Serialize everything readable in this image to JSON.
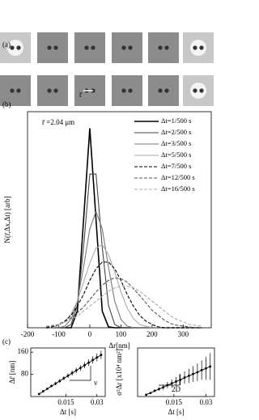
{
  "panel_a": {
    "label": "(a)",
    "scale_label": "r̄"
  },
  "chart_data": [
    {
      "type": "line",
      "panel_label": "(b)",
      "annotation": "r̄ =2.04 μm",
      "x_label": "Δr[nm]",
      "y_label": "N(r̄,Δx,Δt) [arb]",
      "x": [
        -140,
        -120,
        -100,
        -80,
        -60,
        -40,
        -20,
        0,
        20,
        40,
        60,
        80,
        100,
        120,
        140,
        160,
        180,
        200,
        220,
        240,
        260,
        280,
        300,
        320,
        340,
        360
      ],
      "xlim": [
        -200,
        390
      ],
      "xticks": [
        -200,
        -100,
        0,
        100,
        200,
        300
      ],
      "ylim": [
        0,
        26
      ],
      "series": [
        {
          "name": "Δt=1/500 s",
          "color": "#000000",
          "dash": false,
          "values": [
            0,
            0,
            0,
            0,
            0,
            2.0,
            13.0,
            24,
            13.0,
            2.0,
            0.1,
            0,
            0,
            0,
            0,
            0,
            0,
            0,
            0,
            0,
            0,
            0,
            0,
            0,
            0,
            0
          ]
        },
        {
          "name": "Δt=2/500 s",
          "color": "#444444",
          "dash": false,
          "values": [
            0,
            0,
            0,
            0,
            0.4,
            2.7,
            9.7,
            18.5,
            18.5,
            9.7,
            2.7,
            0.4,
            0,
            0,
            0,
            0,
            0,
            0,
            0,
            0,
            0,
            0,
            0,
            0,
            0,
            0
          ]
        },
        {
          "name": "Δt=3/500 s",
          "color": "#777777",
          "dash": false,
          "values": [
            0,
            0,
            0,
            0.2,
            1.0,
            3.2,
            7.3,
            11.9,
            14,
            11.9,
            7.3,
            3.2,
            1.0,
            0.2,
            0,
            0,
            0,
            0,
            0,
            0,
            0,
            0,
            0,
            0,
            0,
            0
          ]
        },
        {
          "name": "Δt=5/500 s",
          "color": "#aaaaaa",
          "dash": false,
          "values": [
            0,
            0,
            0.3,
            0.7,
            1.7,
            3.2,
            5.5,
            7.8,
            9.6,
            10.0,
            8.8,
            6.7,
            4.3,
            2.4,
            1.1,
            0.4,
            0.2,
            0,
            0,
            0,
            0,
            0,
            0,
            0,
            0,
            0
          ]
        },
        {
          "name": "Δt=7/500 s",
          "color": "#000000",
          "dash": true,
          "values": [
            0,
            0.1,
            0.4,
            0.8,
            1.5,
            2.6,
            4.0,
            5.7,
            7.1,
            7.9,
            7.9,
            7.1,
            5.7,
            4.0,
            2.6,
            1.5,
            0.8,
            0.4,
            0.1,
            0,
            0,
            0,
            0,
            0,
            0,
            0
          ]
        },
        {
          "name": "Δt=12/500 s",
          "color": "#555555",
          "dash": true,
          "values": [
            0.1,
            0.2,
            0.4,
            0.7,
            1.2,
            1.8,
            2.5,
            3.4,
            4.3,
            5.1,
            5.7,
            6.0,
            5.9,
            5.5,
            4.7,
            3.9,
            3.0,
            2.1,
            1.5,
            0.9,
            0.5,
            0.3,
            0.2,
            0.1,
            0,
            0
          ]
        },
        {
          "name": "Δt=16/500 s",
          "color": "#aaaaaa",
          "dash": true,
          "values": [
            0.2,
            0.3,
            0.4,
            0.7,
            1.0,
            1.4,
            2.0,
            2.6,
            3.2,
            3.8,
            4.4,
            4.8,
            5.0,
            5.0,
            4.8,
            4.4,
            3.8,
            3.2,
            2.6,
            2.0,
            1.4,
            1.0,
            0.7,
            0.4,
            0.3,
            0.2
          ]
        }
      ]
    },
    {
      "type": "errorline",
      "panel_label": "(c)",
      "annotation": "v",
      "x_label": "Δt [s]",
      "y_label": "Δr̄ [nm]",
      "x": [
        0.002,
        0.004,
        0.006,
        0.008,
        0.01,
        0.012,
        0.014,
        0.016,
        0.018,
        0.02,
        0.022,
        0.024,
        0.026,
        0.028,
        0.03,
        0.032
      ],
      "values": [
        9,
        19,
        28,
        38,
        47,
        56,
        66,
        75,
        85,
        94,
        103,
        113,
        122,
        132,
        141,
        150
      ],
      "errors": [
        2,
        3,
        4,
        5,
        6,
        7,
        7,
        8,
        9,
        10,
        10,
        11,
        12,
        13,
        14,
        15
      ],
      "xlim": [
        -0.002,
        0.034
      ],
      "xticks": [
        0.015,
        0.03
      ],
      "ylim": [
        0,
        175
      ],
      "yticks": [
        80,
        160
      ],
      "color": "#000000"
    },
    {
      "type": "errorline",
      "annotation": "2D",
      "x_label": "Δt [s]",
      "y_label": "σ²Δr [x10⁴ nm²]",
      "x": [
        0.002,
        0.004,
        0.006,
        0.008,
        0.01,
        0.012,
        0.014,
        0.016,
        0.018,
        0.02,
        0.022,
        0.024,
        0.026,
        0.028,
        0.03,
        0.032
      ],
      "values": [
        0.04,
        0.08,
        0.13,
        0.17,
        0.21,
        0.26,
        0.3,
        0.34,
        0.38,
        0.43,
        0.47,
        0.51,
        0.55,
        0.6,
        0.64,
        0.68
      ],
      "errors": [
        0.01,
        0.02,
        0.03,
        0.04,
        0.06,
        0.07,
        0.09,
        0.1,
        0.12,
        0.14,
        0.16,
        0.18,
        0.2,
        0.22,
        0.26,
        0.3
      ],
      "xlim": [
        -0.002,
        0.034
      ],
      "xticks": [
        0.015,
        0.03
      ],
      "ylim": [
        0,
        1.1
      ],
      "color": "#000000"
    }
  ]
}
